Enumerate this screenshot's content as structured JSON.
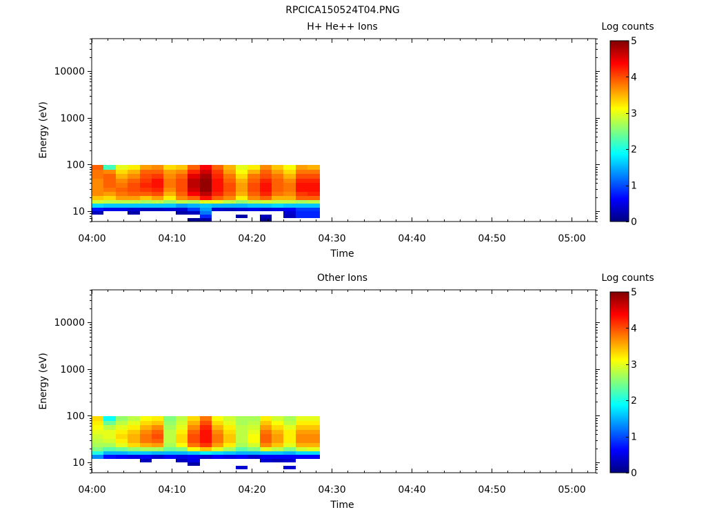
{
  "figure": {
    "title": "RPCICA150524T04.PNG"
  },
  "chart_data": [
    {
      "type": "heatmap",
      "title": "H+ He++ Ions",
      "xlabel": "Time",
      "ylabel": "Energy (eV)",
      "x_ticks": [
        "04:00",
        "04:10",
        "04:20",
        "04:30",
        "04:40",
        "04:50",
        "05:00"
      ],
      "xlim": [
        "04:00",
        "05:03"
      ],
      "y_scale": "log",
      "ylim": [
        6,
        50000
      ],
      "y_tick_labels": [
        "10",
        "100",
        "1000",
        "10000"
      ],
      "colorbar": {
        "label": "Log counts",
        "ticks": [
          "0",
          "1",
          "2",
          "3",
          "4",
          "5"
        ],
        "range": [
          0,
          5
        ],
        "colormap": "jet"
      },
      "time_bins": [
        "04:00",
        "04:01.5",
        "04:03",
        "04:04.5",
        "04:06",
        "04:07.5",
        "04:09",
        "04:10.5",
        "04:12",
        "04:13.5",
        "04:15",
        "04:16.5",
        "04:18",
        "04:19.5",
        "04:21",
        "04:22.5",
        "04:24",
        "04:25.5",
        "04:27"
      ],
      "time_bin_width_min": 1.5,
      "energy_edges_eV": [
        6.0,
        7.2,
        8.5,
        10.0,
        12.0,
        14.5,
        17.5,
        21.0,
        26.0,
        32.0,
        40.0,
        50.0,
        62.0,
        78.0,
        98.0
      ],
      "values": [
        [
          null,
          null,
          0.3,
          0.7,
          1.7,
          2.9,
          3.4,
          3.7,
          3.7,
          3.7,
          3.7,
          3.8,
          3.8,
          3.9
        ],
        [
          null,
          null,
          null,
          0.5,
          1.6,
          2.8,
          3.3,
          3.6,
          3.8,
          3.9,
          3.9,
          3.9,
          3.7,
          2.2
        ],
        [
          null,
          null,
          null,
          0.5,
          1.6,
          2.8,
          3.6,
          3.8,
          3.9,
          3.8,
          3.7,
          3.5,
          3.3,
          3.0
        ],
        [
          null,
          null,
          0.2,
          0.4,
          1.6,
          2.8,
          3.6,
          3.9,
          4.0,
          4.0,
          3.9,
          3.7,
          3.5,
          3.2
        ],
        [
          null,
          null,
          null,
          0.3,
          1.6,
          2.7,
          3.4,
          3.9,
          4.1,
          4.2,
          4.1,
          4.0,
          3.9,
          3.6
        ],
        [
          null,
          null,
          null,
          0.3,
          1.6,
          2.8,
          3.6,
          4.0,
          4.2,
          4.3,
          4.3,
          4.1,
          3.9,
          3.7
        ],
        [
          null,
          null,
          null,
          0.4,
          1.6,
          2.6,
          3.2,
          3.5,
          3.7,
          3.8,
          3.8,
          3.7,
          3.6,
          3.3
        ],
        [
          null,
          null,
          0.2,
          0.4,
          1.4,
          2.8,
          3.7,
          3.9,
          4.0,
          4.0,
          4.0,
          3.9,
          3.7,
          3.4
        ],
        [
          0.1,
          null,
          0.3,
          0.9,
          1.5,
          2.7,
          3.9,
          4.4,
          4.6,
          4.7,
          4.7,
          4.5,
          4.2,
          3.9
        ],
        [
          0.2,
          0.8,
          1.2,
          1.4,
          1.6,
          3.0,
          4.3,
          4.7,
          4.9,
          4.9,
          4.9,
          4.8,
          4.6,
          4.4
        ],
        [
          null,
          null,
          null,
          0.4,
          1.5,
          3.0,
          3.9,
          4.2,
          4.3,
          4.3,
          4.3,
          4.2,
          4.1,
          3.9
        ],
        [
          null,
          null,
          null,
          0.3,
          1.5,
          2.8,
          3.7,
          3.9,
          4.0,
          4.0,
          3.9,
          3.8,
          3.6,
          3.5
        ],
        [
          null,
          0.2,
          null,
          0.4,
          1.5,
          2.6,
          3.2,
          3.5,
          3.6,
          3.6,
          3.5,
          3.3,
          3.1,
          3.0
        ],
        [
          null,
          null,
          null,
          0.5,
          1.6,
          2.8,
          3.7,
          3.9,
          4.0,
          4.0,
          3.9,
          3.8,
          3.5,
          3.2
        ],
        [
          0.1,
          0.3,
          null,
          0.4,
          1.6,
          2.9,
          3.9,
          4.2,
          4.3,
          4.3,
          4.2,
          4.0,
          3.9,
          3.7
        ],
        [
          null,
          null,
          null,
          0.5,
          1.7,
          2.8,
          3.5,
          3.8,
          3.9,
          3.9,
          3.9,
          3.8,
          3.6,
          3.4
        ],
        [
          null,
          0.3,
          0.4,
          0.6,
          1.6,
          2.8,
          3.5,
          3.7,
          3.8,
          3.8,
          3.7,
          3.5,
          3.3,
          3.1
        ],
        [
          null,
          0.8,
          0.8,
          0.9,
          1.6,
          2.7,
          3.9,
          4.1,
          4.3,
          4.3,
          4.2,
          4.0,
          3.8,
          3.6
        ],
        [
          null,
          0.8,
          0.8,
          0.9,
          1.6,
          2.8,
          3.9,
          4.2,
          4.3,
          4.3,
          4.2,
          4.0,
          3.8,
          3.5
        ]
      ]
    },
    {
      "type": "heatmap",
      "title": "Other Ions",
      "xlabel": "Time",
      "ylabel": "Energy (eV)",
      "x_ticks": [
        "04:00",
        "04:10",
        "04:20",
        "04:30",
        "04:40",
        "04:50",
        "05:00"
      ],
      "xlim": [
        "04:00",
        "05:03"
      ],
      "y_scale": "log",
      "ylim": [
        6,
        50000
      ],
      "y_tick_labels": [
        "10",
        "100",
        "1000",
        "10000"
      ],
      "colorbar": {
        "label": "Log counts",
        "ticks": [
          "0",
          "1",
          "2",
          "3",
          "4",
          "5"
        ],
        "range": [
          0,
          5
        ],
        "colormap": "jet"
      },
      "time_bins": [
        "04:00",
        "04:01.5",
        "04:03",
        "04:04.5",
        "04:06",
        "04:07.5",
        "04:09",
        "04:10.5",
        "04:12",
        "04:13.5",
        "04:15",
        "04:16.5",
        "04:18",
        "04:19.5",
        "04:21",
        "04:22.5",
        "04:24",
        "04:25.5",
        "04:27"
      ],
      "time_bin_width_min": 1.5,
      "energy_edges_eV": [
        6.0,
        7.2,
        8.5,
        10.0,
        12.0,
        14.5,
        17.5,
        21.0,
        26.0,
        32.0,
        40.0,
        50.0,
        62.0,
        78.0,
        98.0
      ],
      "values": [
        [
          null,
          null,
          null,
          null,
          1.3,
          2.0,
          2.5,
          2.7,
          2.8,
          2.9,
          3.0,
          3.1,
          3.2,
          3.3
        ],
        [
          null,
          null,
          null,
          null,
          0.7,
          1.5,
          2.3,
          2.7,
          2.9,
          3.0,
          3.0,
          2.8,
          2.4,
          1.9
        ],
        [
          null,
          null,
          null,
          null,
          0.6,
          1.5,
          2.4,
          3.0,
          3.2,
          3.3,
          3.2,
          3.0,
          2.8,
          2.6
        ],
        [
          null,
          null,
          null,
          null,
          0.5,
          1.6,
          2.6,
          3.3,
          3.5,
          3.5,
          3.4,
          3.2,
          3.0,
          2.8
        ],
        [
          null,
          null,
          null,
          0.3,
          0.6,
          1.6,
          2.7,
          3.5,
          3.8,
          3.8,
          3.7,
          3.5,
          3.3,
          3.1
        ],
        [
          null,
          null,
          null,
          null,
          0.4,
          1.5,
          2.7,
          3.6,
          3.9,
          4.0,
          3.9,
          3.7,
          3.4,
          3.2
        ],
        [
          null,
          null,
          null,
          null,
          0.6,
          1.5,
          2.4,
          2.7,
          2.8,
          2.8,
          2.8,
          2.7,
          2.6,
          2.5
        ],
        [
          null,
          null,
          null,
          0.3,
          0.5,
          1.5,
          2.5,
          3.1,
          3.3,
          3.3,
          3.2,
          3.0,
          2.9,
          2.8
        ],
        [
          null,
          null,
          0.2,
          0.5,
          0.6,
          1.6,
          3.1,
          3.8,
          4.0,
          4.0,
          3.9,
          3.7,
          3.5,
          3.3
        ],
        [
          null,
          null,
          null,
          null,
          0.4,
          1.8,
          3.4,
          4.1,
          4.3,
          4.3,
          4.3,
          4.2,
          4.0,
          3.8
        ],
        [
          null,
          null,
          null,
          null,
          0.6,
          1.7,
          3.0,
          3.6,
          3.8,
          3.8,
          3.7,
          3.5,
          3.3,
          3.1
        ],
        [
          null,
          null,
          null,
          null,
          0.5,
          1.6,
          2.7,
          3.2,
          3.4,
          3.4,
          3.3,
          3.2,
          3.0,
          2.9
        ],
        [
          null,
          0.4,
          null,
          null,
          0.6,
          1.5,
          2.3,
          2.7,
          2.8,
          2.8,
          2.8,
          2.8,
          2.7,
          2.7
        ],
        [
          null,
          null,
          null,
          null,
          0.4,
          1.5,
          2.5,
          2.9,
          3.1,
          3.1,
          3.0,
          2.9,
          2.8,
          2.7
        ],
        [
          null,
          null,
          null,
          0.4,
          0.6,
          1.6,
          3.0,
          3.7,
          3.9,
          3.9,
          3.8,
          3.6,
          3.4,
          3.2
        ],
        [
          null,
          null,
          null,
          0.3,
          0.6,
          1.6,
          2.8,
          3.4,
          3.6,
          3.6,
          3.5,
          3.3,
          3.1,
          2.9
        ],
        [
          null,
          0.4,
          null,
          0.4,
          0.6,
          1.5,
          2.5,
          3.0,
          3.2,
          3.2,
          3.2,
          3.0,
          2.8,
          2.7
        ],
        [
          null,
          null,
          null,
          null,
          0.6,
          1.7,
          2.9,
          3.5,
          3.7,
          3.7,
          3.6,
          3.4,
          3.2,
          3.0
        ],
        [
          null,
          null,
          null,
          null,
          0.6,
          1.7,
          3.0,
          3.5,
          3.7,
          3.7,
          3.6,
          3.4,
          3.2,
          3.0
        ]
      ]
    }
  ]
}
